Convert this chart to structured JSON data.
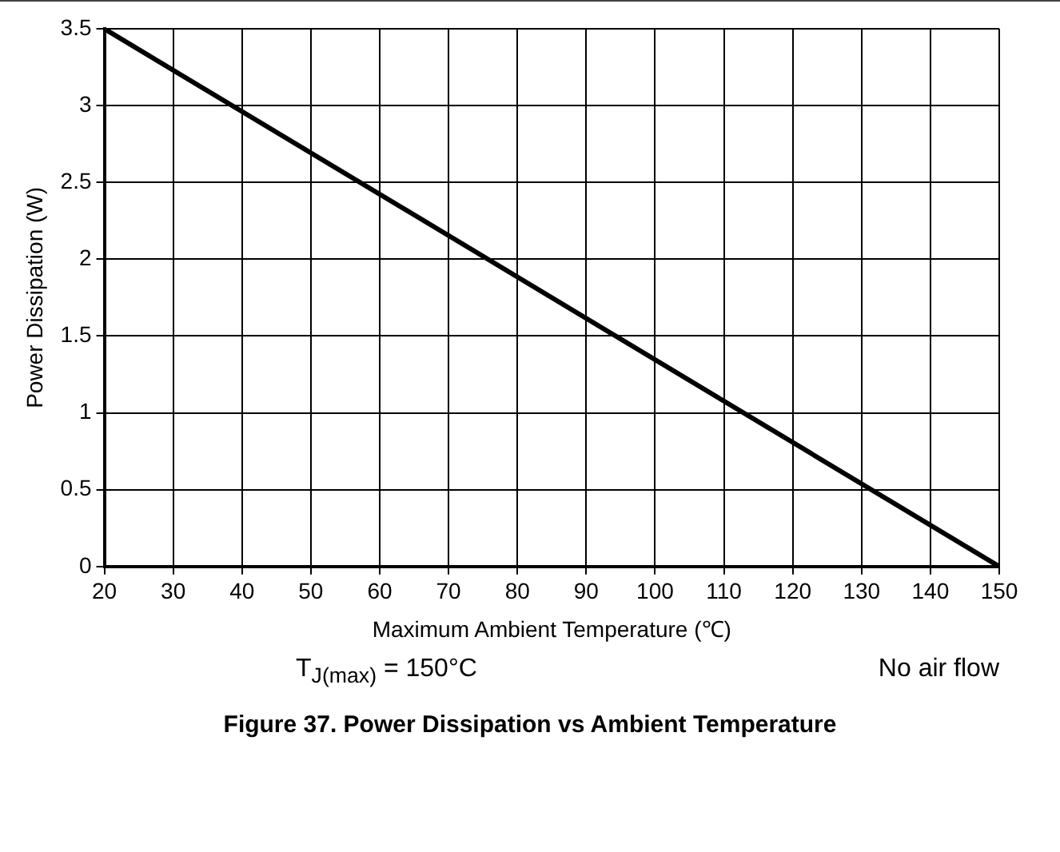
{
  "chart_data": {
    "type": "line",
    "title": "Figure 37. Power Dissipation vs Ambient Temperature",
    "xlabel": "Maximum Ambient Temperature (℃)",
    "ylabel": "Power Dissipation (W)",
    "x": [
      20,
      150
    ],
    "series": [
      {
        "color": "#000000",
        "values": [
          3.5,
          0
        ]
      }
    ],
    "xlim": [
      20,
      150
    ],
    "xticks": [
      20,
      30,
      40,
      50,
      60,
      70,
      80,
      90,
      100,
      110,
      120,
      130,
      140,
      150
    ],
    "ylim": [
      0,
      3.5
    ],
    "yticks": [
      0,
      0.5,
      1,
      1.5,
      2,
      2.5,
      3,
      3.5
    ],
    "grid": true,
    "legend": false,
    "marker": "none",
    "line_style": "solid",
    "annotations": [
      "T$_{J(max)}$ = 150°C",
      "No air flow"
    ]
  }
}
